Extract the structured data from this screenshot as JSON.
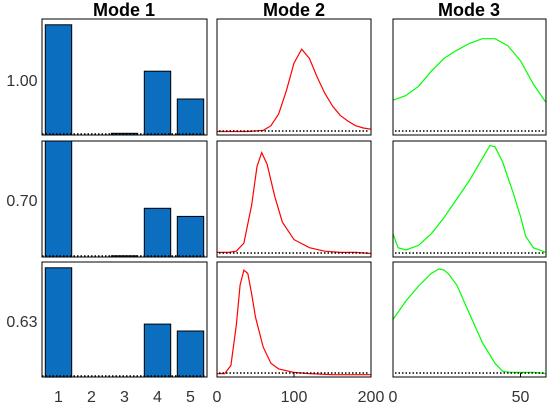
{
  "chart_data": {
    "type": "bar",
    "layout": "3x3 grid of panels",
    "column_titles": [
      "Mode 1",
      "Mode 2",
      "Mode 3"
    ],
    "row_labels": [
      "1.00",
      "0.70",
      "0.63"
    ],
    "mode1": {
      "type": "bar",
      "categories": [
        1,
        2,
        3,
        4,
        5
      ],
      "x_ticks": [
        "1",
        "2",
        "3",
        "4",
        "5"
      ],
      "bar_color": "#0B6EBE",
      "ylim": [
        0,
        1
      ],
      "rows": [
        [
          0.95,
          0.0,
          0.015,
          0.55,
          0.31
        ],
        [
          1.0,
          0.0,
          0.01,
          0.42,
          0.35
        ],
        [
          0.95,
          0.0,
          0.0,
          0.46,
          0.4
        ]
      ]
    },
    "mode2": {
      "type": "line",
      "color": "#FF0000",
      "x_ticks": [
        0,
        100,
        200
      ],
      "xlim": [
        0,
        200
      ],
      "ylim": [
        0,
        1
      ],
      "baseline_style": "dotted black",
      "rows": [
        {
          "x": [
            0,
            20,
            40,
            60,
            70,
            80,
            90,
            100,
            110,
            120,
            130,
            140,
            150,
            160,
            170,
            180,
            190,
            200
          ],
          "y": [
            0.03,
            0.03,
            0.03,
            0.04,
            0.08,
            0.18,
            0.38,
            0.62,
            0.74,
            0.66,
            0.5,
            0.36,
            0.25,
            0.17,
            0.12,
            0.08,
            0.06,
            0.05
          ]
        },
        {
          "x": [
            0,
            15,
            25,
            35,
            45,
            52,
            58,
            65,
            75,
            85,
            100,
            120,
            140,
            160,
            180,
            200
          ],
          "y": [
            0.04,
            0.04,
            0.05,
            0.12,
            0.45,
            0.78,
            0.9,
            0.8,
            0.52,
            0.3,
            0.15,
            0.08,
            0.05,
            0.04,
            0.04,
            0.03
          ]
        },
        {
          "x": [
            0,
            10,
            18,
            25,
            30,
            35,
            40,
            45,
            50,
            60,
            70,
            80,
            100,
            120,
            150,
            200
          ],
          "y": [
            0.03,
            0.03,
            0.1,
            0.45,
            0.8,
            0.93,
            0.9,
            0.72,
            0.52,
            0.26,
            0.12,
            0.07,
            0.04,
            0.03,
            0.02,
            0.02
          ]
        }
      ]
    },
    "mode3": {
      "type": "line",
      "color": "#00FF00",
      "x_ticks": [
        0,
        50
      ],
      "xlim": [
        0,
        60
      ],
      "ylim": [
        0,
        1
      ],
      "baseline_style": "dotted black",
      "rows": [
        {
          "x": [
            0,
            5,
            10,
            15,
            20,
            25,
            30,
            35,
            40,
            45,
            50,
            55,
            60
          ],
          "y": [
            0.3,
            0.34,
            0.42,
            0.55,
            0.66,
            0.73,
            0.79,
            0.83,
            0.83,
            0.77,
            0.64,
            0.44,
            0.28
          ]
        },
        {
          "x": [
            0,
            2,
            5,
            10,
            15,
            20,
            25,
            30,
            35,
            38,
            40,
            43,
            47,
            50,
            52,
            55,
            60
          ],
          "y": [
            0.2,
            0.08,
            0.06,
            0.1,
            0.2,
            0.34,
            0.5,
            0.66,
            0.85,
            0.96,
            0.95,
            0.82,
            0.56,
            0.35,
            0.18,
            0.08,
            0.04
          ]
        },
        {
          "x": [
            0,
            5,
            10,
            15,
            18,
            20,
            22,
            25,
            30,
            35,
            40,
            43,
            46,
            50,
            55,
            60
          ],
          "y": [
            0.5,
            0.66,
            0.79,
            0.9,
            0.94,
            0.93,
            0.89,
            0.8,
            0.55,
            0.3,
            0.12,
            0.05,
            0.04,
            0.04,
            0.04,
            0.03
          ]
        }
      ]
    }
  }
}
